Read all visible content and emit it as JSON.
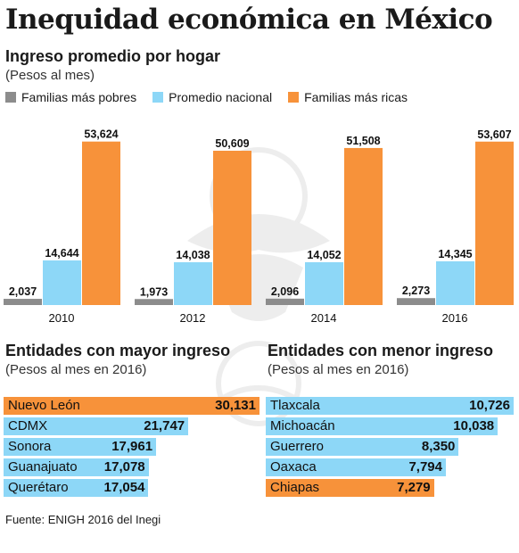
{
  "title": "Inequidad económica en México",
  "top_chart": {
    "subtitle": "Ingreso promedio por hogar",
    "unit": "(Pesos al mes)"
  },
  "left_panel": {
    "subtitle": "Entidades con mayor ingreso",
    "unit": "(Pesos al mes en 2016)"
  },
  "right_panel": {
    "subtitle": "Entidades con menor ingreso",
    "unit": "(Pesos al mes en 2016)"
  },
  "source": "Fuente: ENIGH 2016 del Inegi",
  "colors": {
    "poor": "#8c8c8c",
    "national": "#8dd7f7",
    "rich": "#f7923a"
  },
  "chart_data": [
    {
      "type": "bar",
      "title": "Ingreso promedio por hogar",
      "subtitle": "(Pesos al mes)",
      "categories": [
        "2010",
        "2012",
        "2014",
        "2016"
      ],
      "series": [
        {
          "name": "Familias más pobres",
          "color": "#8c8c8c",
          "values": [
            2037,
            1973,
            2096,
            2273
          ],
          "labels": [
            "2,037",
            "1,973",
            "2,096",
            "2,273"
          ]
        },
        {
          "name": "Promedio nacional",
          "color": "#8dd7f7",
          "values": [
            14644,
            14038,
            14052,
            14345
          ],
          "labels": [
            "14,644",
            "14,038",
            "14,052",
            "14,345"
          ]
        },
        {
          "name": "Familias más ricas",
          "color": "#f7923a",
          "values": [
            53624,
            50609,
            51508,
            53607
          ],
          "labels": [
            "53,624",
            "50,609",
            "51,508",
            "53,607"
          ]
        }
      ],
      "legend": "top",
      "grid": false
    },
    {
      "type": "bar",
      "orientation": "horizontal",
      "title": "Entidades con mayor ingreso",
      "subtitle": "(Pesos al mes en 2016)",
      "categories": [
        "Nuevo León",
        "CDMX",
        "Sonora",
        "Guanajuato",
        "Querétaro"
      ],
      "values": [
        30131,
        21747,
        17961,
        17078,
        17054
      ],
      "labels": [
        "30,131",
        "21,747",
        "17,961",
        "17,078",
        "17,054"
      ],
      "colors": [
        "#f7923a",
        "#8dd7f7",
        "#8dd7f7",
        "#8dd7f7",
        "#8dd7f7"
      ]
    },
    {
      "type": "bar",
      "orientation": "horizontal",
      "title": "Entidades con menor ingreso",
      "subtitle": "(Pesos al mes en 2016)",
      "categories": [
        "Tlaxcala",
        "Michoacán",
        "Guerrero",
        "Oaxaca",
        "Chiapas"
      ],
      "values": [
        10726,
        10038,
        8350,
        7794,
        7279
      ],
      "labels": [
        "10,726",
        "10,038",
        "8,350",
        "7,794",
        "7,279"
      ],
      "colors": [
        "#8dd7f7",
        "#8dd7f7",
        "#8dd7f7",
        "#8dd7f7",
        "#f7923a"
      ]
    }
  ]
}
